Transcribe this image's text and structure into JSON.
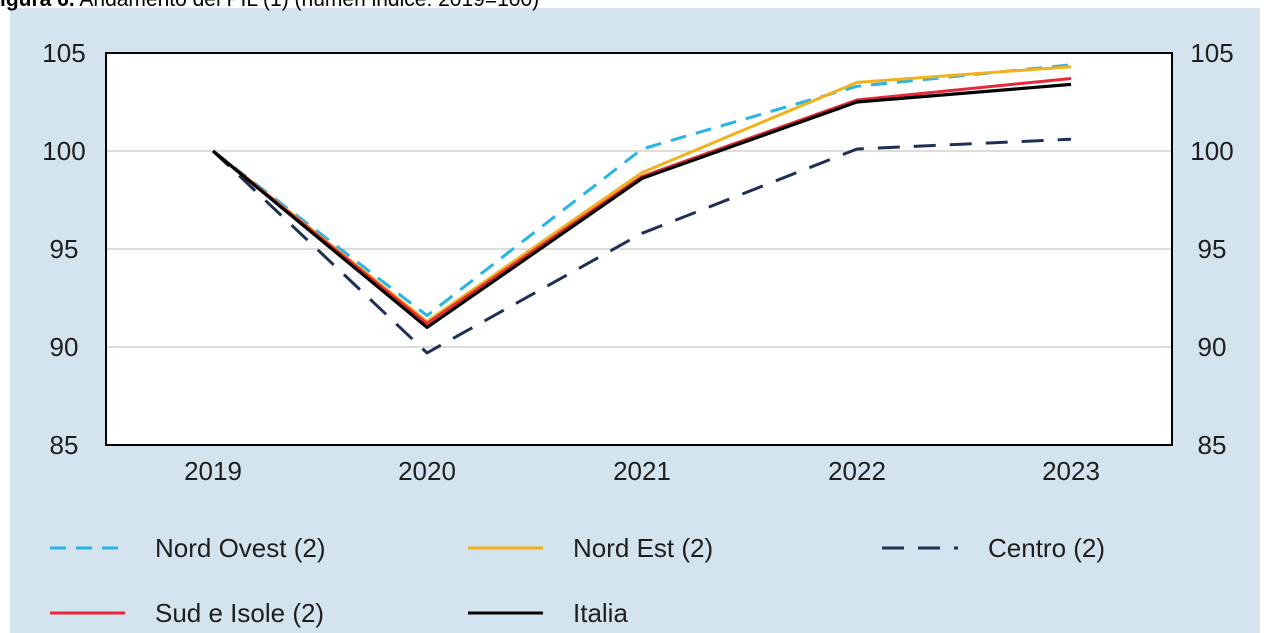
{
  "caption": {
    "lead": "igura 6.",
    "text": " Andamento del PIL (1) (numeri indice: 2019=100)"
  },
  "chart_data": {
    "type": "line",
    "title": "",
    "xlabel": "",
    "ylabel": "",
    "categories": [
      "2019",
      "2020",
      "2021",
      "2022",
      "2023"
    ],
    "ylim": [
      85,
      105
    ],
    "yticks": [
      85,
      90,
      95,
      100,
      105
    ],
    "grid": true,
    "dual_y_axis": true,
    "legend_placement": "bottom",
    "series": [
      {
        "name": "Nord Ovest (2)",
        "values": [
          100,
          91.6,
          100.1,
          103.3,
          104.4
        ],
        "color": "#29b4e8",
        "style": "dashed"
      },
      {
        "name": "Nord Est (2)",
        "values": [
          100,
          91.3,
          98.9,
          103.5,
          104.3
        ],
        "color": "#f0b11c",
        "style": "solid"
      },
      {
        "name": "Centro (2)",
        "values": [
          100,
          89.7,
          95.8,
          100.1,
          100.6
        ],
        "color": "#1f3057",
        "style": "dashed-long"
      },
      {
        "name": "Sud e Isole (2)",
        "values": [
          100,
          91.2,
          98.7,
          102.6,
          103.7
        ],
        "color": "#e8273a",
        "style": "solid"
      },
      {
        "name": "Italia",
        "values": [
          100,
          91.0,
          98.6,
          102.5,
          103.4
        ],
        "color": "#000000",
        "style": "solid"
      }
    ]
  }
}
